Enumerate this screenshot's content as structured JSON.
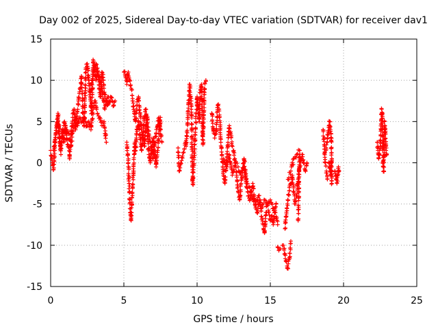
{
  "chart_data": {
    "type": "scatter",
    "title": "Day 002 of 2025, Sidereal Day-to-day VTEC variation (SDTVAR) for receiver dav1",
    "xlabel": "GPS time / hours",
    "ylabel": "SDTVAR / TECUs",
    "xlim": [
      0,
      25
    ],
    "ylim": [
      -15,
      15
    ],
    "xticks": [
      "0",
      "5",
      "10",
      "15",
      "20",
      "25"
    ],
    "yticks": [
      "-15",
      "-10",
      "-5",
      "0",
      "5",
      "10",
      "15"
    ],
    "grid": true,
    "marker": "+",
    "color": "#ff0000",
    "segments": [
      [
        [
          0.0,
          1.5
        ],
        [
          0.1,
          0.0
        ],
        [
          0.2,
          -0.8
        ],
        [
          0.3,
          2.5
        ],
        [
          0.4,
          4.5
        ],
        [
          0.5,
          6.0
        ],
        [
          0.6,
          3.5
        ],
        [
          0.7,
          1.0
        ],
        [
          0.8,
          4.0
        ],
        [
          0.9,
          2.5
        ],
        [
          1.0,
          4.5
        ],
        [
          1.1,
          3.0
        ],
        [
          1.2,
          2.0
        ],
        [
          1.3,
          0.5
        ],
        [
          1.4,
          3.5
        ],
        [
          1.5,
          5.5
        ],
        [
          1.6,
          6.5
        ],
        [
          1.7,
          4.0
        ],
        [
          1.8,
          6.0
        ],
        [
          1.9,
          7.5
        ],
        [
          2.0,
          9.0
        ],
        [
          2.1,
          10.5
        ],
        [
          2.2,
          6.0
        ],
        [
          2.3,
          4.5
        ],
        [
          2.4,
          11.5
        ],
        [
          2.5,
          12.0
        ],
        [
          2.6,
          10.0
        ],
        [
          2.7,
          8.0
        ],
        [
          2.8,
          6.0
        ],
        [
          2.9,
          12.5
        ],
        [
          3.0,
          11.5
        ],
        [
          3.1,
          10.0
        ],
        [
          3.2,
          11.0
        ],
        [
          3.3,
          9.5
        ],
        [
          3.4,
          8.0
        ],
        [
          3.5,
          11.0
        ],
        [
          3.6,
          10.0
        ],
        [
          3.7,
          8.0
        ],
        [
          3.8,
          7.5
        ],
        [
          3.9,
          7.0
        ],
        [
          4.0,
          7.5
        ],
        [
          4.1,
          8.0
        ],
        [
          4.2,
          7.5
        ],
        [
          4.3,
          7.0
        ],
        [
          4.4,
          7.5
        ]
      ],
      [
        [
          0.2,
          1.5
        ],
        [
          0.35,
          3.5
        ],
        [
          0.5,
          5.0
        ],
        [
          0.65,
          2.0
        ],
        [
          0.8,
          3.0
        ],
        [
          0.95,
          5.0
        ],
        [
          1.1,
          4.0
        ],
        [
          1.25,
          3.5
        ],
        [
          1.4,
          2.0
        ],
        [
          1.55,
          4.5
        ],
        [
          1.7,
          5.5
        ],
        [
          1.85,
          4.5
        ],
        [
          2.0,
          5.5
        ],
        [
          2.15,
          5.0
        ],
        [
          2.3,
          5.5
        ],
        [
          2.45,
          4.5
        ],
        [
          2.6,
          5.0
        ],
        [
          2.75,
          4.0
        ],
        [
          2.9,
          6.5
        ],
        [
          3.05,
          7.5
        ],
        [
          3.2,
          6.0
        ],
        [
          3.35,
          5.5
        ],
        [
          3.5,
          4.5
        ],
        [
          3.65,
          5.0
        ],
        [
          3.8,
          2.5
        ]
      ],
      [
        [
          2.7,
          8.5
        ],
        [
          2.9,
          10.5
        ],
        [
          3.1,
          12.0
        ],
        [
          3.3,
          10.5
        ],
        [
          3.5,
          9.0
        ],
        [
          3.7,
          6.5
        ],
        [
          3.9,
          8.0
        ],
        [
          4.1,
          7.5
        ]
      ],
      [
        [
          5.0,
          11.0
        ],
        [
          5.1,
          10.5
        ],
        [
          5.2,
          9.5
        ],
        [
          5.3,
          11.0
        ],
        [
          5.4,
          10.0
        ],
        [
          5.5,
          9.0
        ],
        [
          5.6,
          7.5
        ],
        [
          5.7,
          6.0
        ],
        [
          5.8,
          5.0
        ],
        [
          5.9,
          7.0
        ],
        [
          6.0,
          8.0
        ],
        [
          6.1,
          6.0
        ],
        [
          6.2,
          4.0
        ],
        [
          6.3,
          3.0
        ],
        [
          6.4,
          2.0
        ],
        [
          6.5,
          4.5
        ],
        [
          6.6,
          5.5
        ],
        [
          6.7,
          3.5
        ],
        [
          6.8,
          2.5
        ],
        [
          6.9,
          1.5
        ],
        [
          7.0,
          0.5
        ],
        [
          7.1,
          2.0
        ],
        [
          7.2,
          3.5
        ],
        [
          7.3,
          4.5
        ],
        [
          7.4,
          5.5
        ],
        [
          7.5,
          4.0
        ],
        [
          7.6,
          2.5
        ]
      ],
      [
        [
          5.2,
          2.5
        ],
        [
          5.3,
          0.0
        ],
        [
          5.35,
          -2.5
        ],
        [
          5.4,
          -4.5
        ],
        [
          5.45,
          -6.0
        ],
        [
          5.5,
          -7.0
        ],
        [
          5.55,
          -5.0
        ],
        [
          5.6,
          -3.0
        ],
        [
          5.65,
          -1.0
        ],
        [
          5.7,
          1.0
        ],
        [
          5.75,
          2.5
        ],
        [
          5.8,
          1.5
        ],
        [
          5.85,
          3.0
        ],
        [
          5.9,
          4.0
        ],
        [
          6.0,
          5.0
        ],
        [
          6.1,
          3.5
        ],
        [
          6.2,
          1.5
        ],
        [
          6.3,
          3.0
        ],
        [
          6.4,
          5.5
        ],
        [
          6.5,
          6.5
        ],
        [
          6.6,
          4.0
        ],
        [
          6.7,
          1.0
        ],
        [
          6.8,
          0.0
        ],
        [
          6.9,
          2.0
        ],
        [
          7.0,
          3.0
        ],
        [
          7.1,
          1.0
        ],
        [
          7.2,
          -0.5
        ],
        [
          7.3,
          1.5
        ],
        [
          7.4,
          3.5
        ],
        [
          7.5,
          5.5
        ]
      ],
      [
        [
          8.7,
          1.8
        ],
        [
          8.75,
          0.0
        ],
        [
          8.8,
          -1.0
        ],
        [
          9.2,
          2.5
        ],
        [
          9.25,
          2.0
        ],
        [
          9.5,
          9.5
        ],
        [
          9.55,
          8.0
        ],
        [
          9.6,
          7.5
        ],
        [
          9.7,
          -2.6
        ],
        [
          10.0,
          8.0
        ],
        [
          10.1,
          6.0
        ],
        [
          10.15,
          5.0
        ],
        [
          10.2,
          8.5
        ],
        [
          10.3,
          9.5
        ],
        [
          10.4,
          2.2
        ],
        [
          10.5,
          9.0
        ],
        [
          10.6,
          10.0
        ]
      ],
      [
        [
          11.0,
          6.0
        ],
        [
          11.1,
          4.0
        ],
        [
          11.2,
          3.0
        ],
        [
          11.3,
          3.5
        ],
        [
          11.4,
          7.0
        ],
        [
          11.5,
          6.5
        ],
        [
          11.6,
          3.0
        ],
        [
          11.7,
          1.0
        ],
        [
          11.8,
          -1.5
        ],
        [
          11.9,
          -2.5
        ],
        [
          12.0,
          0.0
        ],
        [
          12.1,
          2.0
        ],
        [
          12.2,
          4.5
        ],
        [
          12.3,
          3.5
        ],
        [
          12.4,
          2.0
        ],
        [
          12.5,
          1.5
        ],
        [
          12.6,
          0.0
        ],
        [
          12.7,
          -1.5
        ],
        [
          12.8,
          -3.5
        ],
        [
          12.9,
          -4.5
        ],
        [
          13.0,
          -2.5
        ],
        [
          13.1,
          -1.0
        ],
        [
          13.2,
          0.5
        ],
        [
          13.3,
          -1.0
        ],
        [
          13.4,
          -3.0
        ],
        [
          13.5,
          -4.0
        ],
        [
          13.6,
          -4.5
        ],
        [
          13.7,
          -3.5
        ],
        [
          13.8,
          -2.5
        ],
        [
          13.9,
          -4.0
        ],
        [
          14.0,
          -5.5
        ],
        [
          14.1,
          -6.0
        ],
        [
          14.2,
          -5.0
        ],
        [
          14.3,
          -4.5
        ],
        [
          14.4,
          -6.5
        ],
        [
          14.5,
          -7.5
        ],
        [
          14.6,
          -8.5
        ],
        [
          14.7,
          -6.0
        ],
        [
          14.8,
          -5.0
        ],
        [
          14.9,
          -6.0
        ],
        [
          15.0,
          -7.0
        ],
        [
          15.1,
          -6.5
        ],
        [
          15.2,
          -7.5
        ],
        [
          15.3,
          -6.0
        ],
        [
          15.4,
          -5.0
        ]
      ],
      [
        [
          11.8,
          0.5
        ],
        [
          12.0,
          -0.5
        ],
        [
          12.2,
          1.0
        ],
        [
          12.4,
          -1.5
        ],
        [
          12.6,
          0.0
        ],
        [
          12.8,
          -0.5
        ],
        [
          13.0,
          -1.5
        ],
        [
          13.2,
          -0.5
        ],
        [
          13.4,
          -2.5
        ],
        [
          13.6,
          -3.0
        ],
        [
          13.8,
          -4.5
        ],
        [
          14.0,
          -5.0
        ],
        [
          14.2,
          -4.0
        ],
        [
          14.4,
          -5.5
        ],
        [
          14.6,
          -4.5
        ],
        [
          14.8,
          -5.0
        ],
        [
          15.0,
          -4.5
        ],
        [
          15.2,
          -5.5
        ],
        [
          15.4,
          -6.5
        ],
        [
          15.5,
          -7.5
        ]
      ],
      [
        [
          15.5,
          -10.2
        ],
        [
          15.6,
          -10.5
        ],
        [
          15.9,
          -10.0
        ],
        [
          16.0,
          -11.0
        ],
        [
          16.1,
          -12.0
        ],
        [
          16.2,
          -12.8
        ],
        [
          16.3,
          -11.5
        ],
        [
          16.4,
          -9.5
        ]
      ],
      [
        [
          16.0,
          -8.0
        ],
        [
          16.1,
          -6.0
        ],
        [
          16.2,
          -4.5
        ],
        [
          16.3,
          -3.0
        ],
        [
          16.4,
          -2.5
        ],
        [
          16.5,
          -1.5
        ],
        [
          16.6,
          -3.5
        ],
        [
          16.7,
          -5.0
        ],
        [
          16.8,
          -4.0
        ],
        [
          16.9,
          -2.0
        ],
        [
          17.0,
          -0.5
        ],
        [
          17.1,
          0.5
        ],
        [
          17.2,
          1.0
        ],
        [
          17.3,
          0.0
        ],
        [
          17.4,
          -1.0
        ],
        [
          17.5,
          0.0
        ]
      ],
      [
        [
          16.2,
          -2.0
        ],
        [
          16.4,
          -1.0
        ],
        [
          16.6,
          0.5
        ],
        [
          16.8,
          1.0
        ],
        [
          17.0,
          1.5
        ],
        [
          16.9,
          -7.0
        ]
      ],
      [
        [
          18.8,
          1.5
        ],
        [
          18.9,
          3.0
        ],
        [
          19.0,
          4.5
        ],
        [
          19.05,
          5.0
        ],
        [
          19.1,
          4.0
        ],
        [
          19.15,
          3.5
        ],
        [
          19.2,
          -2.5
        ],
        [
          19.0,
          0.0
        ],
        [
          19.1,
          -1.0
        ],
        [
          19.2,
          0.5
        ]
      ],
      [
        [
          19.4,
          -1.0
        ],
        [
          19.5,
          -2.0
        ],
        [
          19.55,
          -2.5
        ],
        [
          19.6,
          -1.5
        ],
        [
          19.65,
          -0.5
        ],
        [
          19.7,
          -1.0
        ]
      ],
      [
        [
          22.3,
          2.5
        ],
        [
          22.35,
          1.5
        ],
        [
          22.4,
          0.5
        ],
        [
          22.45,
          1.0
        ],
        [
          22.5,
          2.0
        ],
        [
          22.6,
          6.5
        ],
        [
          22.65,
          6.0
        ],
        [
          22.7,
          -0.5
        ],
        [
          22.75,
          -1.0
        ],
        [
          22.8,
          5.0
        ],
        [
          22.85,
          4.0
        ],
        [
          22.9,
          1.5
        ],
        [
          22.95,
          1.0
        ]
      ],
      [
        [
          18.6,
          4.0
        ],
        [
          18.7,
          2.0
        ],
        [
          18.75,
          0.0
        ],
        [
          18.9,
          -2.0
        ]
      ]
    ]
  }
}
